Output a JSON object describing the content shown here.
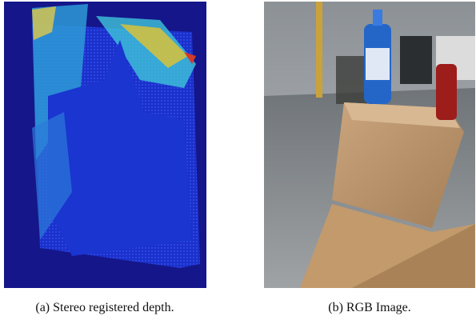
{
  "figure": {
    "subfigures": [
      {
        "caption": "(a) Stereo registered depth."
      },
      {
        "caption": "(b) RGB Image."
      }
    ]
  }
}
